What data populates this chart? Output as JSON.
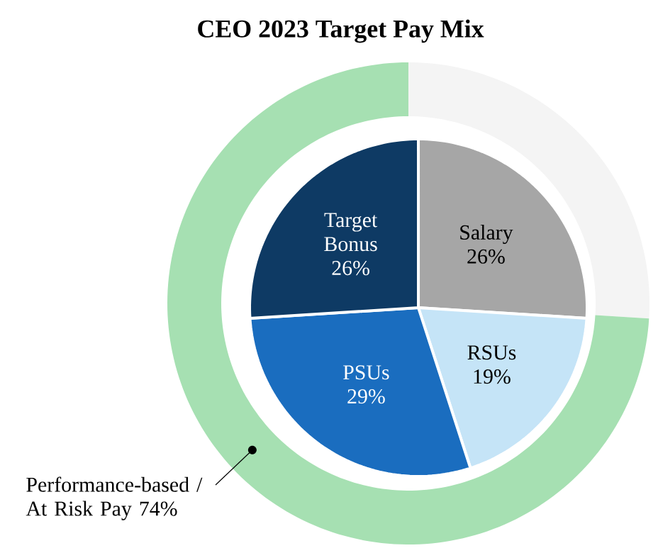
{
  "chart_data": [
    {
      "type": "pie",
      "title": "CEO 2023 Target Pay Mix",
      "categories": [
        "Salary",
        "RSUs",
        "PSUs",
        "Target Bonus"
      ],
      "values": [
        26,
        19,
        29,
        26
      ],
      "value_labels": [
        "26%",
        "19%",
        "29%",
        "26%"
      ],
      "colors": [
        "#a6a6a6",
        "#c5e4f7",
        "#1a6dbf",
        "#0e3a64"
      ]
    },
    {
      "type": "donut",
      "categories": [
        null,
        "Performance-based / At Risk Pay"
      ],
      "values": [
        26,
        74
      ],
      "value_labels": [
        null,
        "74%"
      ],
      "colors": [
        "#f4f4f4",
        "#a6e0b2"
      ]
    }
  ]
}
